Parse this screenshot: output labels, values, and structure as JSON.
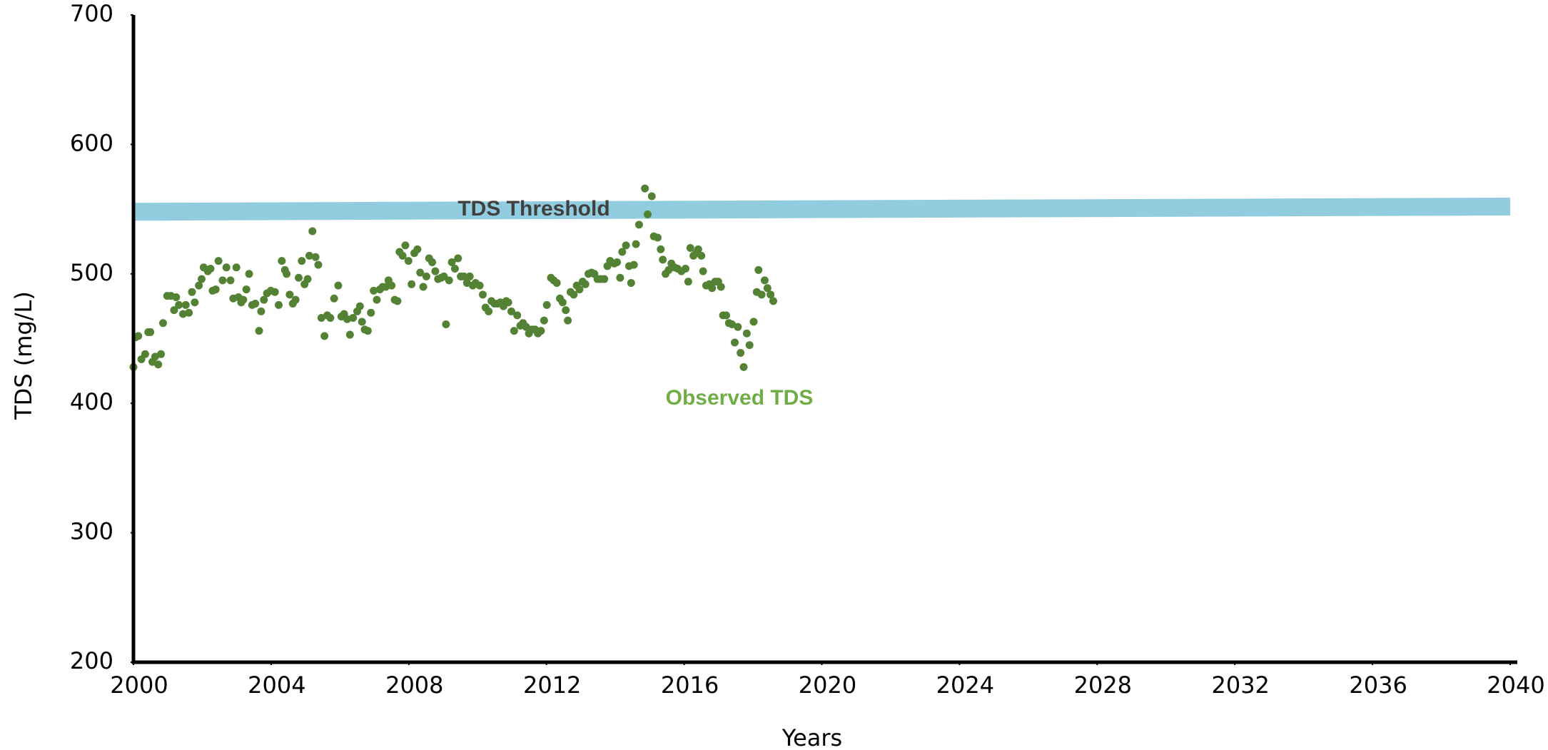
{
  "chart_data": {
    "type": "scatter",
    "xlabel": "Years",
    "ylabel": "TDS  (mg/L)",
    "xlim": [
      2000,
      2040
    ],
    "ylim": [
      200,
      700
    ],
    "xticks": [
      2000,
      2004,
      2008,
      2012,
      2016,
      2020,
      2024,
      2028,
      2032,
      2036,
      2040
    ],
    "yticks": [
      200,
      300,
      400,
      500,
      600,
      700
    ],
    "series": [
      {
        "name": "Observed TDS",
        "type": "scatter",
        "color": "#548235",
        "label_color": "#70ad47",
        "x": [
          2000.0,
          2000.06,
          2000.14,
          2000.23,
          2000.34,
          2000.43,
          2000.49,
          2000.55,
          2000.63,
          2000.72,
          2000.8,
          2000.86,
          2000.98,
          2001.09,
          2001.18,
          2001.24,
          2001.32,
          2001.44,
          2001.52,
          2001.61,
          2001.7,
          2001.78,
          2001.9,
          2001.98,
          2002.04,
          2002.16,
          2002.24,
          2002.3,
          2002.39,
          2002.47,
          2002.59,
          2002.7,
          2002.82,
          2002.9,
          2002.99,
          2003.05,
          2003.13,
          2003.19,
          2003.28,
          2003.36,
          2003.45,
          2003.54,
          2003.65,
          2003.71,
          2003.79,
          2003.88,
          2003.99,
          2004.11,
          2004.22,
          2004.31,
          2004.4,
          2004.45,
          2004.54,
          2004.63,
          2004.71,
          2004.8,
          2004.89,
          2004.97,
          2005.06,
          2005.11,
          2005.2,
          2005.29,
          2005.37,
          2005.46,
          2005.55,
          2005.63,
          2005.72,
          2005.83,
          2005.95,
          2006.04,
          2006.12,
          2006.21,
          2006.29,
          2006.38,
          2006.5,
          2006.58,
          2006.64,
          2006.72,
          2006.81,
          2006.9,
          2006.98,
          2007.07,
          2007.16,
          2007.24,
          2007.33,
          2007.41,
          2007.5,
          2007.59,
          2007.67,
          2007.73,
          2007.82,
          2007.9,
          2007.99,
          2008.08,
          2008.16,
          2008.25,
          2008.33,
          2008.42,
          2008.51,
          2008.59,
          2008.68,
          2008.77,
          2008.85,
          2008.94,
          2009.02,
          2009.08,
          2009.17,
          2009.25,
          2009.34,
          2009.43,
          2009.51,
          2009.6,
          2009.69,
          2009.77,
          2009.86,
          2009.94,
          2010.06,
          2010.15,
          2010.23,
          2010.32,
          2010.4,
          2010.49,
          2010.58,
          2010.66,
          2010.75,
          2010.83,
          2010.89,
          2010.98,
          2011.06,
          2011.15,
          2011.24,
          2011.32,
          2011.41,
          2011.49,
          2011.58,
          2011.67,
          2011.75,
          2011.84,
          2011.93,
          2012.01,
          2012.13,
          2012.21,
          2012.3,
          2012.39,
          2012.47,
          2012.56,
          2012.62,
          2012.7,
          2012.79,
          2012.88,
          2012.96,
          2013.05,
          2013.13,
          2013.22,
          2013.31,
          2013.39,
          2013.48,
          2013.57,
          2013.68,
          2013.77,
          2013.85,
          2013.97,
          2014.05,
          2014.14,
          2014.2,
          2014.31,
          2014.4,
          2014.46,
          2014.54,
          2014.6,
          2014.69,
          2014.86,
          2014.94,
          2015.06,
          2015.12,
          2015.23,
          2015.32,
          2015.38,
          2015.46,
          2015.55,
          2015.63,
          2015.72,
          2015.81,
          2015.92,
          2016.04,
          2016.12,
          2016.18,
          2016.27,
          2016.35,
          2016.41,
          2016.5,
          2016.55,
          2016.64,
          2016.73,
          2016.81,
          2016.9,
          2016.99,
          2017.07,
          2017.13,
          2017.22,
          2017.3,
          2017.39,
          2017.47,
          2017.56,
          2017.64,
          2017.73,
          2017.82,
          2017.9,
          2018.02,
          2018.11,
          2018.16,
          2018.25,
          2018.34,
          2018.42,
          2018.51,
          2018.59
        ],
        "values": [
          428,
          451,
          452,
          434,
          438,
          455,
          455,
          432,
          436,
          430,
          438,
          462,
          483,
          483,
          472,
          482,
          476,
          469,
          476,
          470,
          486,
          478,
          491,
          496,
          505,
          502,
          504,
          487,
          488,
          510,
          495,
          505,
          495,
          481,
          505,
          482,
          478,
          480,
          488,
          500,
          476,
          477,
          456,
          471,
          480,
          485,
          487,
          486,
          476,
          510,
          503,
          500,
          484,
          477,
          480,
          497,
          510,
          492,
          496,
          514,
          533,
          513,
          507,
          466,
          452,
          468,
          466,
          481,
          491,
          467,
          469,
          465,
          453,
          466,
          471,
          475,
          463,
          457,
          456,
          470,
          487,
          480,
          488,
          490,
          490,
          495,
          491,
          480,
          479,
          517,
          514,
          522,
          510,
          492,
          516,
          519,
          501,
          490,
          498,
          512,
          509,
          502,
          496,
          497,
          498,
          461,
          495,
          509,
          504,
          512,
          498,
          498,
          493,
          498,
          491,
          493,
          491,
          484,
          474,
          471,
          479,
          477,
          477,
          478,
          475,
          479,
          478,
          471,
          456,
          468,
          460,
          462,
          459,
          454,
          457,
          457,
          454,
          456,
          464,
          476,
          497,
          495,
          493,
          481,
          478,
          472,
          464,
          486,
          484,
          491,
          488,
          494,
          492,
          500,
          501,
          500,
          496,
          496,
          496,
          506,
          510,
          508,
          509,
          497,
          517,
          522,
          506,
          493,
          507,
          523,
          538,
          566,
          546,
          560,
          529,
          528,
          519,
          511,
          500,
          503,
          508,
          505,
          504,
          502,
          504,
          494,
          520,
          514,
          516,
          519,
          514,
          502,
          491,
          492,
          489,
          494,
          494,
          490,
          468,
          468,
          462,
          461,
          447,
          459,
          439,
          428,
          454,
          445,
          463,
          486,
          503,
          484,
          495,
          489,
          484,
          479
        ]
      },
      {
        "name": "TDS Threshold",
        "type": "line",
        "color": "#92cddf",
        "label_color": "#404040",
        "x": [
          2000,
          2040
        ],
        "values": [
          548,
          552
        ]
      }
    ]
  }
}
